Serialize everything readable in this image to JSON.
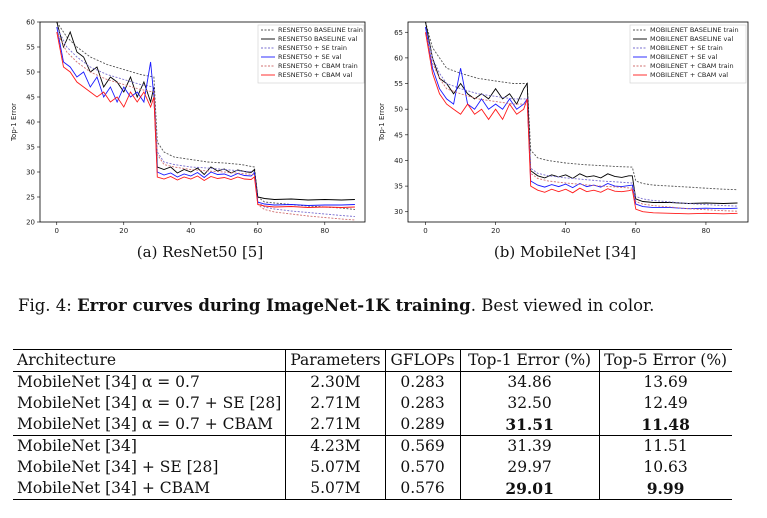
{
  "figure": {
    "subcaption_a": "(a) ResNet50 [5]",
    "subcaption_b": "(b) MobileNet [34]",
    "caption_prefix": "Fig. 4: ",
    "caption_bold": "Error curves during ImageNet-1K training",
    "caption_rest": ". Best viewed in color."
  },
  "chart_data": [
    {
      "type": "line",
      "ylabel": "Top-1 Error",
      "xlabel": "",
      "xlim": [
        -5,
        92
      ],
      "ylim": [
        20,
        60
      ],
      "xticks": [
        0,
        20,
        40,
        60,
        80
      ],
      "yticks": [
        20,
        25,
        30,
        35,
        40,
        45,
        50,
        55,
        60
      ],
      "legend_position": "top-right",
      "series": [
        {
          "name": "RESNET50 BASELINE train",
          "color": "#555555",
          "dash": "2,1.5",
          "x": [
            0,
            3,
            6,
            10,
            15,
            20,
            25,
            29,
            30,
            32,
            35,
            40,
            45,
            50,
            55,
            59,
            60,
            62,
            65,
            70,
            75,
            80,
            85,
            89
          ],
          "y": [
            60,
            57,
            55,
            53,
            51.5,
            50.5,
            49.5,
            49,
            36,
            34,
            33,
            32.5,
            32,
            31.8,
            31.5,
            31,
            25,
            24,
            23.8,
            23.5,
            23.2,
            23,
            22.8,
            22.5
          ]
        },
        {
          "name": "RESNET50 BASELINE val",
          "color": "#000000",
          "dash": "",
          "x": [
            0,
            2,
            4,
            6,
            8,
            10,
            12,
            14,
            16,
            18,
            20,
            22,
            24,
            26,
            28,
            29,
            30,
            32,
            34,
            36,
            38,
            40,
            42,
            44,
            46,
            48,
            50,
            52,
            54,
            56,
            58,
            59,
            60,
            62,
            65,
            70,
            75,
            80,
            85,
            89
          ],
          "y": [
            60,
            55,
            58,
            54,
            53,
            50,
            51,
            47,
            49,
            48,
            46,
            49,
            45,
            48,
            44,
            47,
            31,
            30.5,
            31,
            29.8,
            30.5,
            30,
            30.8,
            29.5,
            31,
            30.2,
            30.6,
            29.8,
            30.4,
            30.1,
            29.9,
            30.5,
            25,
            24.7,
            24.5,
            24.6,
            24.4,
            24.5,
            24.4,
            24.5
          ]
        },
        {
          "name": "RESNET50 + SE train",
          "color": "#7a6fd0",
          "dash": "2,1.5",
          "x": [
            0,
            3,
            6,
            10,
            15,
            20,
            25,
            29,
            30,
            32,
            35,
            40,
            45,
            50,
            55,
            59,
            60,
            62,
            65,
            70,
            75,
            80,
            85,
            89
          ],
          "y": [
            59,
            55,
            53,
            51,
            49.5,
            48.5,
            47.5,
            47,
            34,
            32,
            31.5,
            31,
            30.8,
            30.5,
            30.2,
            30,
            24,
            23,
            22.6,
            22.2,
            21.9,
            21.6,
            21.3,
            21.1
          ]
        },
        {
          "name": "RESNET50 + SE val",
          "color": "#1a1aff",
          "dash": "",
          "x": [
            0,
            2,
            4,
            6,
            8,
            10,
            12,
            14,
            16,
            18,
            20,
            22,
            24,
            26,
            28,
            29,
            30,
            32,
            34,
            36,
            38,
            40,
            42,
            44,
            46,
            48,
            50,
            52,
            54,
            56,
            58,
            59,
            60,
            62,
            65,
            70,
            75,
            80,
            85,
            89
          ],
          "y": [
            59,
            52,
            51,
            49,
            50,
            47,
            49,
            45,
            47,
            44,
            47,
            45,
            46,
            44,
            52,
            45,
            30,
            29.4,
            29.8,
            29,
            29.6,
            29.2,
            29.9,
            28.9,
            30,
            29.5,
            29.6,
            29.1,
            29.7,
            29.3,
            29.2,
            29.8,
            24,
            23.6,
            23.4,
            23.5,
            23.3,
            23.4,
            23.4,
            23.5
          ]
        },
        {
          "name": "RESNET50 + CBAM train",
          "color": "#d07070",
          "dash": "2,1.5",
          "x": [
            0,
            3,
            6,
            10,
            15,
            20,
            25,
            29,
            30,
            32,
            35,
            40,
            45,
            50,
            55,
            59,
            60,
            62,
            65,
            70,
            75,
            80,
            85,
            89
          ],
          "y": [
            58,
            54,
            52,
            50,
            48.5,
            47.5,
            46.5,
            46,
            33.5,
            31.5,
            31,
            30.5,
            30.2,
            30,
            29.7,
            29.5,
            23.5,
            22.5,
            22,
            21.6,
            21.2,
            20.9,
            20.6,
            20.4
          ]
        },
        {
          "name": "RESNET50 + CBAM val",
          "color": "#ff1a1a",
          "dash": "",
          "x": [
            0,
            2,
            4,
            6,
            8,
            10,
            12,
            14,
            16,
            18,
            20,
            22,
            24,
            26,
            28,
            29,
            30,
            32,
            34,
            36,
            38,
            40,
            42,
            44,
            46,
            48,
            50,
            52,
            54,
            56,
            58,
            59,
            60,
            62,
            65,
            70,
            75,
            80,
            85,
            89
          ],
          "y": [
            58,
            51,
            50,
            48,
            47,
            46,
            45,
            46,
            44,
            45,
            43,
            46,
            44,
            46,
            43,
            45,
            29,
            28.6,
            29.1,
            28.4,
            29,
            28.6,
            29.2,
            28.3,
            29.1,
            28.7,
            28.9,
            28.5,
            29,
            28.6,
            28.5,
            29,
            23.5,
            23.2,
            23,
            23.1,
            22.9,
            23,
            22.9,
            23
          ]
        }
      ]
    },
    {
      "type": "line",
      "ylabel": "Top-1 Error",
      "xlabel": "",
      "xlim": [
        -5,
        92
      ],
      "ylim": [
        28,
        67
      ],
      "xticks": [
        0,
        20,
        40,
        60,
        80
      ],
      "yticks": [
        30,
        35,
        40,
        45,
        50,
        55,
        60,
        65
      ],
      "legend_position": "top-right",
      "series": [
        {
          "name": "MOBILENET BASELINE train",
          "color": "#555555",
          "dash": "2,1.5",
          "x": [
            0,
            2,
            4,
            6,
            10,
            15,
            20,
            25,
            29,
            30,
            32,
            35,
            40,
            45,
            50,
            55,
            59,
            60,
            62,
            65,
            70,
            75,
            80,
            85,
            89
          ],
          "y": [
            67,
            62,
            60,
            58,
            57,
            56,
            55.5,
            55,
            55,
            42,
            40.5,
            40,
            39.5,
            39.2,
            39,
            38.8,
            38.7,
            36,
            35.5,
            35.2,
            35,
            34.8,
            34.6,
            34.4,
            34.3
          ]
        },
        {
          "name": "MOBILENET BASELINE val",
          "color": "#000000",
          "dash": "",
          "x": [
            0,
            2,
            4,
            6,
            8,
            10,
            12,
            14,
            16,
            18,
            20,
            22,
            24,
            26,
            28,
            29,
            30,
            32,
            34,
            36,
            38,
            40,
            42,
            44,
            46,
            48,
            50,
            52,
            54,
            56,
            58,
            59,
            60,
            62,
            65,
            70,
            75,
            80,
            85,
            89
          ],
          "y": [
            67,
            60,
            56,
            55,
            53,
            55,
            53,
            52,
            53,
            52,
            54,
            52,
            53,
            51,
            54,
            55,
            38,
            37,
            36.6,
            37.2,
            36.8,
            37.2,
            36.5,
            37.4,
            36.8,
            37,
            36.6,
            37.4,
            36.9,
            36.7,
            37,
            37,
            32.5,
            32,
            31.8,
            31.8,
            31.6,
            31.7,
            31.6,
            31.7
          ]
        },
        {
          "name": "MOBILENET + SE train",
          "color": "#7a6fd0",
          "dash": "2,1.5",
          "x": [
            0,
            2,
            4,
            6,
            10,
            15,
            20,
            25,
            29,
            30,
            32,
            35,
            40,
            45,
            50,
            55,
            59,
            60,
            62,
            65,
            70,
            75,
            80,
            85,
            89
          ],
          "y": [
            66,
            60,
            57,
            55,
            54,
            53,
            52.5,
            52,
            52,
            38.5,
            37.5,
            37,
            36.6,
            36.3,
            36,
            35.8,
            35.6,
            33,
            32.5,
            32.2,
            31.9,
            31.6,
            31.4,
            31.2,
            31.1
          ]
        },
        {
          "name": "MOBILENET + SE val",
          "color": "#1a1aff",
          "dash": "",
          "x": [
            0,
            2,
            4,
            6,
            8,
            10,
            12,
            14,
            16,
            18,
            20,
            22,
            24,
            26,
            28,
            29,
            30,
            32,
            34,
            36,
            38,
            40,
            42,
            44,
            46,
            48,
            50,
            52,
            54,
            56,
            58,
            59,
            60,
            62,
            65,
            70,
            75,
            80,
            85,
            89
          ],
          "y": [
            66,
            58,
            54,
            52,
            51,
            58,
            51,
            50,
            52,
            50,
            51,
            50,
            52,
            50,
            51,
            52,
            36,
            35.2,
            34.8,
            35.3,
            34.9,
            35.4,
            34.7,
            35.5,
            34.9,
            35.2,
            34.8,
            35.5,
            35,
            34.9,
            35.1,
            35.2,
            31.5,
            31,
            30.8,
            30.8,
            30.6,
            30.7,
            30.6,
            30.7
          ]
        },
        {
          "name": "MOBILENET + CBAM train",
          "color": "#d07070",
          "dash": "2,1.5",
          "x": [
            0,
            2,
            4,
            6,
            10,
            15,
            20,
            25,
            29,
            30,
            32,
            35,
            40,
            45,
            50,
            55,
            59,
            60,
            62,
            65,
            70,
            75,
            80,
            85,
            89
          ],
          "y": [
            65,
            59,
            56,
            54,
            53,
            52,
            51.5,
            51,
            51,
            37.5,
            36.5,
            36,
            35.6,
            35.3,
            35,
            34.8,
            34.6,
            32,
            31.5,
            31.2,
            30.9,
            30.6,
            30.4,
            30.2,
            30.1
          ]
        },
        {
          "name": "MOBILENET + CBAM val",
          "color": "#ff1a1a",
          "dash": "",
          "x": [
            0,
            2,
            4,
            6,
            8,
            10,
            12,
            14,
            16,
            18,
            20,
            22,
            24,
            26,
            28,
            29,
            30,
            32,
            34,
            36,
            38,
            40,
            42,
            44,
            46,
            48,
            50,
            52,
            54,
            56,
            58,
            59,
            60,
            62,
            65,
            70,
            75,
            80,
            85,
            89
          ],
          "y": [
            65,
            57,
            53,
            51,
            50,
            49,
            51,
            49,
            50,
            48,
            50,
            48,
            51,
            49,
            50,
            52,
            35,
            34.2,
            33.8,
            34.4,
            33.9,
            34.4,
            33.7,
            34.6,
            33.9,
            34.2,
            33.8,
            34.5,
            34,
            33.9,
            34.1,
            34.3,
            30.5,
            30,
            29.8,
            29.7,
            29.6,
            29.7,
            29.6,
            29.7
          ]
        }
      ]
    }
  ],
  "table": {
    "headers": [
      "Architecture",
      "Parameters",
      "GFLOPs",
      "Top-1 Error (%)",
      "Top-5 Error (%)"
    ],
    "rows": [
      {
        "arch": "MobileNet [34] α = 0.7",
        "params": "2.30M",
        "gflops": "0.283",
        "top1": "34.86",
        "top5": "13.69",
        "bold": false,
        "group_start": false
      },
      {
        "arch": "MobileNet [34] α = 0.7 + SE [28]",
        "params": "2.71M",
        "gflops": "0.283",
        "top1": "32.50",
        "top5": "12.49",
        "bold": false,
        "group_start": false
      },
      {
        "arch": "MobileNet [34] α = 0.7 + CBAM",
        "params": "2.71M",
        "gflops": "0.289",
        "top1": "31.51",
        "top5": "11.48",
        "bold": true,
        "group_start": false
      },
      {
        "arch": "MobileNet [34]",
        "params": "4.23M",
        "gflops": "0.569",
        "top1": "31.39",
        "top5": "11.51",
        "bold": false,
        "group_start": true
      },
      {
        "arch": "MobileNet [34] + SE [28]",
        "params": "5.07M",
        "gflops": "0.570",
        "top1": "29.97",
        "top5": "10.63",
        "bold": false,
        "group_start": false
      },
      {
        "arch": "MobileNet [34] + CBAM",
        "params": "5.07M",
        "gflops": "0.576",
        "top1": "29.01",
        "top5": "9.99",
        "bold": true,
        "group_start": false
      }
    ]
  }
}
